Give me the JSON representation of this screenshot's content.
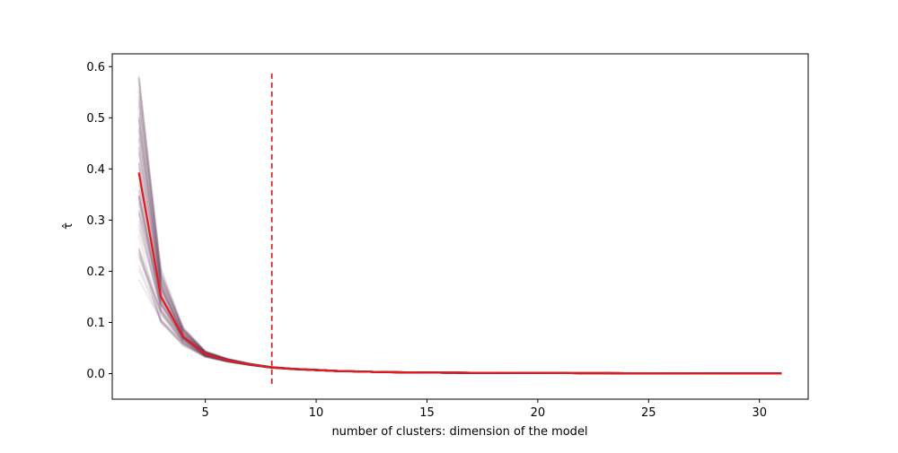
{
  "chart_data": {
    "type": "line",
    "xlabel": "number of clusters: dimension of the model",
    "ylabel": "τ̂",
    "xlim": [
      0.8,
      32.2
    ],
    "ylim": [
      -0.05,
      0.625
    ],
    "xticks": [
      5,
      10,
      15,
      20,
      25,
      30
    ],
    "yticks": [
      0.0,
      0.1,
      0.2,
      0.3,
      0.4,
      0.5,
      0.6
    ],
    "xtick_labels": [
      "5",
      "10",
      "15",
      "20",
      "25",
      "30"
    ],
    "ytick_labels": [
      "0.0",
      "0.1",
      "0.2",
      "0.3",
      "0.4",
      "0.5",
      "0.6"
    ],
    "grid": false,
    "colors": {
      "mean_line": "#e41a1c",
      "simulation_lines": "#5a2a52",
      "vline": "#d62728"
    },
    "x": [
      2,
      3,
      4,
      5,
      6,
      7,
      8,
      9,
      10,
      11,
      12,
      13,
      14,
      15,
      16,
      17,
      18,
      19,
      20,
      21,
      22,
      23,
      24,
      25,
      26,
      27,
      28,
      29,
      30,
      31
    ],
    "mean_series": {
      "values": [
        0.393,
        0.15,
        0.072,
        0.038,
        0.026,
        0.018,
        0.012,
        0.009,
        0.007,
        0.005,
        0.004,
        0.003,
        0.0025,
        0.002,
        0.0018,
        0.0016,
        0.0015,
        0.0013,
        0.0012,
        0.001,
        0.0009,
        0.0008,
        0.0007,
        0.0006,
        0.0005,
        0.0004,
        0.0003,
        0.0002,
        0.0001,
        0.0001
      ]
    },
    "simulation_runs": {
      "count": 60,
      "start_range": [
        0.21,
        0.59
      ]
    },
    "vline": {
      "x": 8,
      "ymin": -0.02,
      "ymax": 0.59,
      "style": "dashed"
    }
  }
}
